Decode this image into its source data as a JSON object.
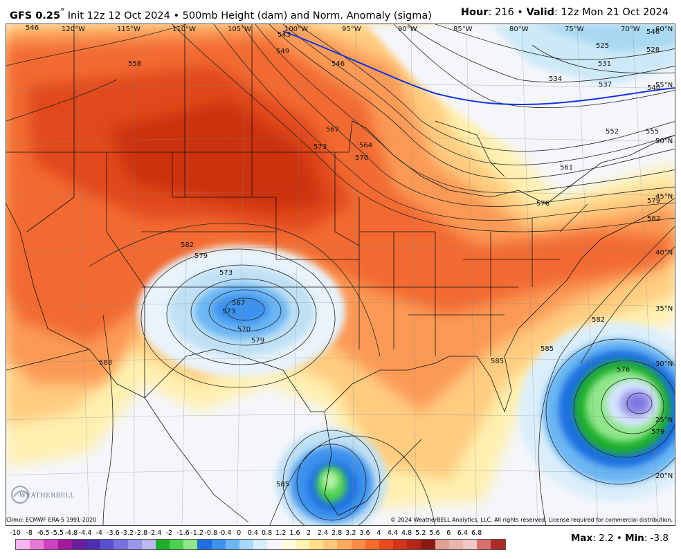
{
  "header": {
    "model": "GFS 0.25",
    "degree": "°",
    "init": " Init 12z 12 Oct 2024",
    "bullet": " • ",
    "product": "500mb Height (dam) and Norm. Anomaly (sigma)",
    "hour_label": "Hour",
    "hour_value": ": 216 • ",
    "valid_label": "Valid",
    "valid_value": ": 12z Mon 21 Oct 2024"
  },
  "map": {
    "lon_labels": [
      "120°W",
      "115°W",
      "110°W",
      "105°W",
      "100°W",
      "95°W",
      "90°W",
      "85°W",
      "80°W",
      "75°W",
      "70°W",
      "60°N"
    ],
    "lat_labels": [
      "55°N",
      "50°N",
      "45°N",
      "40°N",
      "35°N",
      "30°N",
      "25°N",
      "20°N"
    ],
    "contour_labels": [
      "546",
      "543",
      "549",
      "558",
      "546",
      "525",
      "531",
      "534",
      "537",
      "540",
      "567",
      "573",
      "564",
      "570",
      "552",
      "555",
      "561",
      "576",
      "579",
      "582",
      "582",
      "579",
      "573",
      "567",
      "570",
      "579",
      "588",
      "585",
      "582",
      "585",
      "576",
      "579",
      "585",
      "546",
      "528",
      "573"
    ],
    "logo_text": "WEATHERBELL"
  },
  "footer": {
    "climo": "Climo: ECMWF ERA-5 1991-2020",
    "copyright": "© 2024 WeatherBELL Analytics, LLC. All rights reserved. License required for commercial distribution."
  },
  "colorbar": {
    "labels": [
      "-10",
      "-8",
      "-6.5",
      "-5.5",
      "-4.8",
      "-4.4",
      "-4",
      "-3.6",
      "-3.2",
      "-2.8",
      "-2.4",
      "-2",
      "-1.6",
      "-1.2",
      "-0.8",
      "-0.4",
      "0",
      "0.4",
      "0.8",
      "1.2",
      "1.6",
      "2",
      "2.4",
      "2.8",
      "3.2",
      "3.6",
      "4",
      "4.4",
      "4.8",
      "5.2",
      "5.6",
      "6",
      "6.4",
      "6.8"
    ],
    "colors": [
      "#f7b6f0",
      "#e67ad8",
      "#d040c0",
      "#a2199e",
      "#6b1d9c",
      "#4b2fb0",
      "#5a4fd0",
      "#7a70e0",
      "#9c96ea",
      "#bdb8f2",
      "#1fae2a",
      "#4ed24e",
      "#90e68a",
      "#1f6fe0",
      "#3c92ee",
      "#6cb6f4",
      "#a8d8fa",
      "#d6eefc",
      "#f4f6fb",
      "#fffbe0",
      "#fff3b0",
      "#ffe08a",
      "#ffc879",
      "#ffaa5c",
      "#ff8c44",
      "#fa6a2a",
      "#ea4a1c",
      "#d2331a",
      "#b5251a",
      "#8c1a14",
      "#e2a094",
      "#eab4b0",
      "#f0c6c6",
      "#d87070",
      "#b02a2a"
    ],
    "scheme": "normalized-anomaly-sigma"
  },
  "stats": {
    "max_label": "Max",
    "max_value": ": 2.2 • ",
    "min_label": "Min",
    "min_value": ": -3.8"
  }
}
